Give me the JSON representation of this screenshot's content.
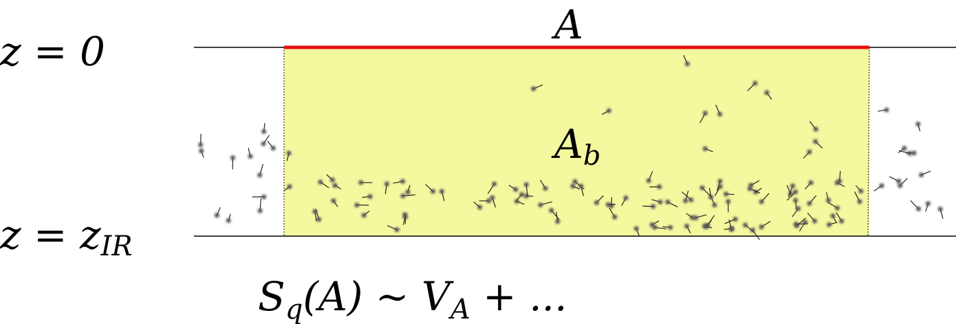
{
  "labels": {
    "top_boundary": "z = 0",
    "region_top": "A",
    "region_bulk": {
      "base": "A",
      "sub": "b"
    },
    "ir_boundary": {
      "base": "z = z",
      "sub": "IR"
    },
    "formula": [
      {
        "text": "S"
      },
      {
        "sub": "q"
      },
      {
        "text": "(A) ∼ V"
      },
      {
        "sub": "A"
      },
      {
        "text": " + ..."
      }
    ]
  }
}
